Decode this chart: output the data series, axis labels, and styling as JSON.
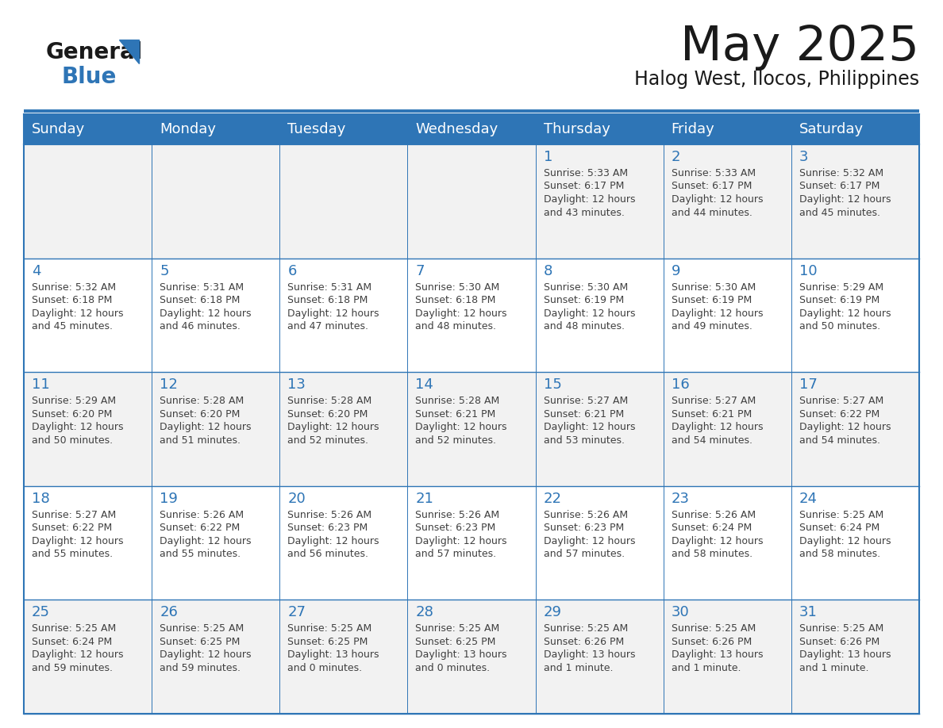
{
  "title": "May 2025",
  "subtitle": "Halog West, Ilocos, Philippines",
  "header_bg": "#2E75B6",
  "header_text_color": "#FFFFFF",
  "day_names": [
    "Sunday",
    "Monday",
    "Tuesday",
    "Wednesday",
    "Thursday",
    "Friday",
    "Saturday"
  ],
  "odd_row_bg": "#F2F2F2",
  "even_row_bg": "#FFFFFF",
  "cell_border_color": "#2E75B6",
  "day_number_color": "#2E75B6",
  "info_text_color": "#404040",
  "logo_general_color": "#1A1A1A",
  "logo_blue_color": "#2E75B6",
  "calendar_data": [
    [
      null,
      null,
      null,
      null,
      {
        "day": 1,
        "sunrise": "5:33 AM",
        "sunset": "6:17 PM",
        "daylight_h": "12 hours",
        "daylight_m": "and 43 minutes."
      },
      {
        "day": 2,
        "sunrise": "5:33 AM",
        "sunset": "6:17 PM",
        "daylight_h": "12 hours",
        "daylight_m": "and 44 minutes."
      },
      {
        "day": 3,
        "sunrise": "5:32 AM",
        "sunset": "6:17 PM",
        "daylight_h": "12 hours",
        "daylight_m": "and 45 minutes."
      }
    ],
    [
      {
        "day": 4,
        "sunrise": "5:32 AM",
        "sunset": "6:18 PM",
        "daylight_h": "12 hours",
        "daylight_m": "and 45 minutes."
      },
      {
        "day": 5,
        "sunrise": "5:31 AM",
        "sunset": "6:18 PM",
        "daylight_h": "12 hours",
        "daylight_m": "and 46 minutes."
      },
      {
        "day": 6,
        "sunrise": "5:31 AM",
        "sunset": "6:18 PM",
        "daylight_h": "12 hours",
        "daylight_m": "and 47 minutes."
      },
      {
        "day": 7,
        "sunrise": "5:30 AM",
        "sunset": "6:18 PM",
        "daylight_h": "12 hours",
        "daylight_m": "and 48 minutes."
      },
      {
        "day": 8,
        "sunrise": "5:30 AM",
        "sunset": "6:19 PM",
        "daylight_h": "12 hours",
        "daylight_m": "and 48 minutes."
      },
      {
        "day": 9,
        "sunrise": "5:30 AM",
        "sunset": "6:19 PM",
        "daylight_h": "12 hours",
        "daylight_m": "and 49 minutes."
      },
      {
        "day": 10,
        "sunrise": "5:29 AM",
        "sunset": "6:19 PM",
        "daylight_h": "12 hours",
        "daylight_m": "and 50 minutes."
      }
    ],
    [
      {
        "day": 11,
        "sunrise": "5:29 AM",
        "sunset": "6:20 PM",
        "daylight_h": "12 hours",
        "daylight_m": "and 50 minutes."
      },
      {
        "day": 12,
        "sunrise": "5:28 AM",
        "sunset": "6:20 PM",
        "daylight_h": "12 hours",
        "daylight_m": "and 51 minutes."
      },
      {
        "day": 13,
        "sunrise": "5:28 AM",
        "sunset": "6:20 PM",
        "daylight_h": "12 hours",
        "daylight_m": "and 52 minutes."
      },
      {
        "day": 14,
        "sunrise": "5:28 AM",
        "sunset": "6:21 PM",
        "daylight_h": "12 hours",
        "daylight_m": "and 52 minutes."
      },
      {
        "day": 15,
        "sunrise": "5:27 AM",
        "sunset": "6:21 PM",
        "daylight_h": "12 hours",
        "daylight_m": "and 53 minutes."
      },
      {
        "day": 16,
        "sunrise": "5:27 AM",
        "sunset": "6:21 PM",
        "daylight_h": "12 hours",
        "daylight_m": "and 54 minutes."
      },
      {
        "day": 17,
        "sunrise": "5:27 AM",
        "sunset": "6:22 PM",
        "daylight_h": "12 hours",
        "daylight_m": "and 54 minutes."
      }
    ],
    [
      {
        "day": 18,
        "sunrise": "5:27 AM",
        "sunset": "6:22 PM",
        "daylight_h": "12 hours",
        "daylight_m": "and 55 minutes."
      },
      {
        "day": 19,
        "sunrise": "5:26 AM",
        "sunset": "6:22 PM",
        "daylight_h": "12 hours",
        "daylight_m": "and 55 minutes."
      },
      {
        "day": 20,
        "sunrise": "5:26 AM",
        "sunset": "6:23 PM",
        "daylight_h": "12 hours",
        "daylight_m": "and 56 minutes."
      },
      {
        "day": 21,
        "sunrise": "5:26 AM",
        "sunset": "6:23 PM",
        "daylight_h": "12 hours",
        "daylight_m": "and 57 minutes."
      },
      {
        "day": 22,
        "sunrise": "5:26 AM",
        "sunset": "6:23 PM",
        "daylight_h": "12 hours",
        "daylight_m": "and 57 minutes."
      },
      {
        "day": 23,
        "sunrise": "5:26 AM",
        "sunset": "6:24 PM",
        "daylight_h": "12 hours",
        "daylight_m": "and 58 minutes."
      },
      {
        "day": 24,
        "sunrise": "5:25 AM",
        "sunset": "6:24 PM",
        "daylight_h": "12 hours",
        "daylight_m": "and 58 minutes."
      }
    ],
    [
      {
        "day": 25,
        "sunrise": "5:25 AM",
        "sunset": "6:24 PM",
        "daylight_h": "12 hours",
        "daylight_m": "and 59 minutes."
      },
      {
        "day": 26,
        "sunrise": "5:25 AM",
        "sunset": "6:25 PM",
        "daylight_h": "12 hours",
        "daylight_m": "and 59 minutes."
      },
      {
        "day": 27,
        "sunrise": "5:25 AM",
        "sunset": "6:25 PM",
        "daylight_h": "13 hours",
        "daylight_m": "and 0 minutes."
      },
      {
        "day": 28,
        "sunrise": "5:25 AM",
        "sunset": "6:25 PM",
        "daylight_h": "13 hours",
        "daylight_m": "and 0 minutes."
      },
      {
        "day": 29,
        "sunrise": "5:25 AM",
        "sunset": "6:26 PM",
        "daylight_h": "13 hours",
        "daylight_m": "and 1 minute."
      },
      {
        "day": 30,
        "sunrise": "5:25 AM",
        "sunset": "6:26 PM",
        "daylight_h": "13 hours",
        "daylight_m": "and 1 minute."
      },
      {
        "day": 31,
        "sunrise": "5:25 AM",
        "sunset": "6:26 PM",
        "daylight_h": "13 hours",
        "daylight_m": "and 1 minute."
      }
    ]
  ]
}
